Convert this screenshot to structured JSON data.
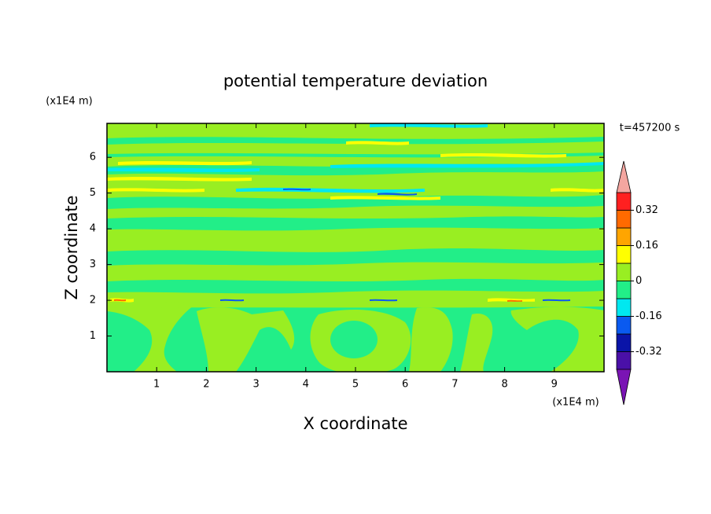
{
  "chart_data": {
    "type": "contour",
    "title": "potential temperature deviation",
    "x_label": "X coordinate",
    "y_label": "Z coordinate",
    "x_unit": "(x1E4 m)",
    "y_unit": "(x1E4 m)",
    "time_label": "t=457200 s",
    "xlim": [
      0,
      10
    ],
    "xticks": [
      1,
      2,
      3,
      4,
      5,
      6,
      7,
      8,
      9
    ],
    "ylim": [
      0,
      6.95
    ],
    "yticks": [
      1,
      2,
      3,
      4,
      5,
      6
    ],
    "colorbar": {
      "levels": [
        -0.4,
        -0.32,
        -0.24,
        -0.16,
        -0.08,
        0,
        0.08,
        0.16,
        0.24,
        0.32,
        0.4
      ],
      "colors": [
        "#4a10a8",
        "#0a14a8",
        "#0a5af0",
        "#00e8f0",
        "#22ee88",
        "#99ee22",
        "#ffff00",
        "#ffa500",
        "#ff6a00",
        "#ff2020"
      ],
      "under_color": "#7a14b4",
      "over_color": "#f4a6a0",
      "ticks": [
        -0.32,
        -0.16,
        0,
        0.16,
        0.32
      ]
    }
  }
}
